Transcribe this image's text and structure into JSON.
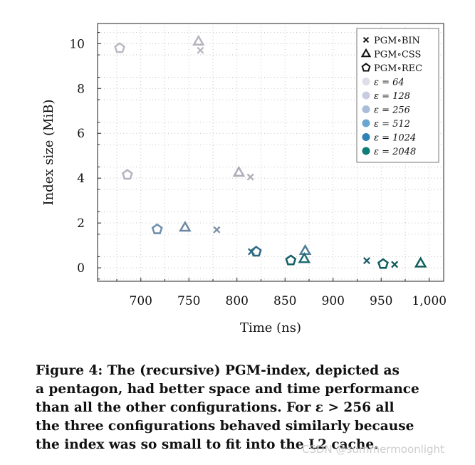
{
  "chart_data": {
    "type": "scatter",
    "title": "",
    "xlabel": "Time (ns)",
    "ylabel": "Index size (MiB)",
    "xlim": [
      655,
      1015
    ],
    "ylim": [
      -0.6,
      10.9
    ],
    "xticks": [
      700,
      750,
      800,
      850,
      900,
      950,
      1000
    ],
    "xtick_labels": [
      "700",
      "750",
      "800",
      "850",
      "900",
      "950",
      "1,000"
    ],
    "yticks": [
      0,
      2,
      4,
      6,
      8,
      10
    ],
    "ytick_labels": [
      "0",
      "2",
      "4",
      "6",
      "8",
      "10"
    ],
    "grid": "dotted",
    "legend_position": "top-right",
    "legend": {
      "markers": [
        {
          "label": "PGM∘BIN",
          "shape": "cross"
        },
        {
          "label": "PGM∘CSS",
          "shape": "triangle"
        },
        {
          "label": "PGM∘REC",
          "shape": "pentagon"
        }
      ],
      "epsilons": [
        {
          "label": "ε = 64",
          "color": "#e0dde8"
        },
        {
          "label": "ε = 128",
          "color": "#c9cce0"
        },
        {
          "label": "ε = 256",
          "color": "#a9bcd9"
        },
        {
          "label": "ε = 512",
          "color": "#6aa6cf"
        },
        {
          "label": "ε = 1024",
          "color": "#2f82b6"
        },
        {
          "label": "ε = 2048",
          "color": "#0e7c78"
        }
      ]
    },
    "series": [
      {
        "name": "PGM∘REC",
        "marker": "pentagon",
        "points": [
          {
            "x": 678,
            "y": 9.8,
            "color": "#bdb9c4"
          },
          {
            "x": 686,
            "y": 4.15,
            "color": "#b2b4c0"
          },
          {
            "x": 717,
            "y": 1.72,
            "color": "#6f8fab"
          },
          {
            "x": 820,
            "y": 0.72,
            "color": "#2f6a84"
          },
          {
            "x": 856,
            "y": 0.33,
            "color": "#145f63"
          },
          {
            "x": 952,
            "y": 0.17,
            "color": "#0f5d5c"
          }
        ]
      },
      {
        "name": "PGM∘CSS",
        "marker": "triangle",
        "points": [
          {
            "x": 760,
            "y": 10.1,
            "color": "#b7b4bd"
          },
          {
            "x": 802,
            "y": 4.25,
            "color": "#adaeba"
          },
          {
            "x": 746,
            "y": 1.8,
            "color": "#6d87a3"
          },
          {
            "x": 871,
            "y": 0.76,
            "color": "#4f7e96"
          },
          {
            "x": 870,
            "y": 0.4,
            "color": "#1f6d72"
          },
          {
            "x": 991,
            "y": 0.2,
            "color": "#0e5f5c"
          }
        ]
      },
      {
        "name": "PGM∘BIN",
        "marker": "cross",
        "points": [
          {
            "x": 762,
            "y": 9.7,
            "color": "#bab7c0"
          },
          {
            "x": 814,
            "y": 4.05,
            "color": "#adaeba"
          },
          {
            "x": 779,
            "y": 1.7,
            "color": "#7a8fa6"
          },
          {
            "x": 815,
            "y": 0.72,
            "color": "#2f6a84"
          },
          {
            "x": 935,
            "y": 0.32,
            "color": "#1e5f6a"
          },
          {
            "x": 964,
            "y": 0.15,
            "color": "#0f5a5a"
          }
        ]
      }
    ]
  },
  "caption": {
    "lines": [
      "Figure 4: The (recursive) PGM-index, depicted as",
      "a pentagon, had better space and time performance",
      "than all the other configurations.  For ε > 256 all",
      "the three configurations behaved similarly because",
      "the index was so small to fit into the L2 cache."
    ]
  },
  "watermark": "CSDN @summermoonlight"
}
